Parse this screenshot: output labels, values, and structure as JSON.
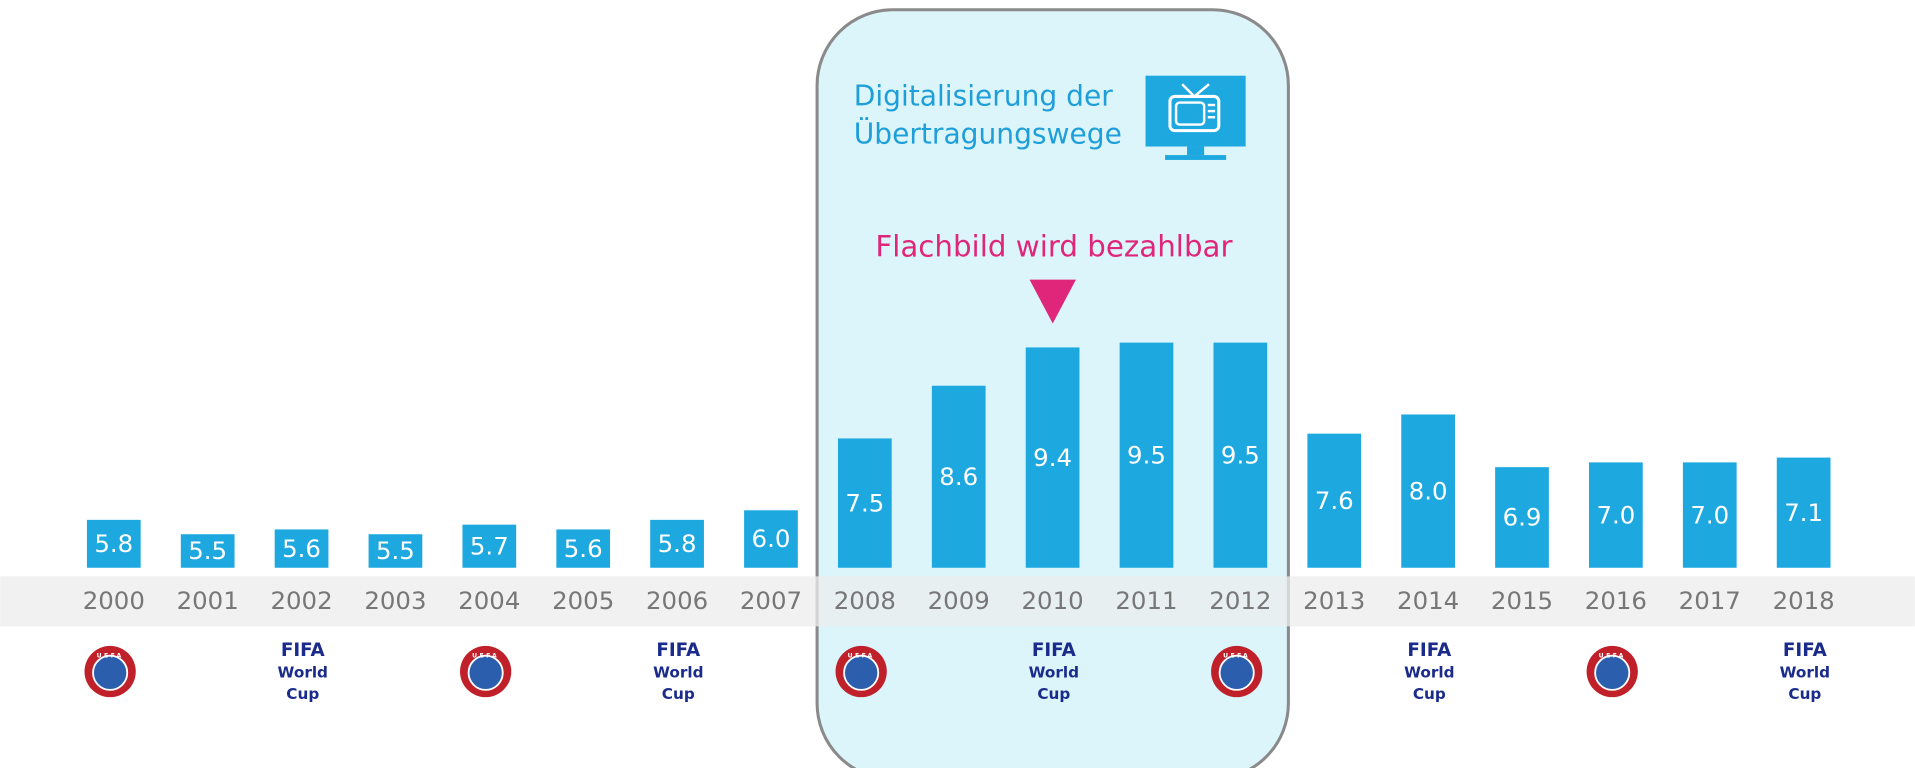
{
  "chart_data": {
    "type": "bar",
    "categories": [
      "2000",
      "2001",
      "2002",
      "2003",
      "2004",
      "2005",
      "2006",
      "2007",
      "2008",
      "2009",
      "2010",
      "2011",
      "2012",
      "2013",
      "2014",
      "2015",
      "2016",
      "2017",
      "2018"
    ],
    "values": [
      5.8,
      5.5,
      5.6,
      5.5,
      5.7,
      5.6,
      5.8,
      6.0,
      7.5,
      8.6,
      9.4,
      9.5,
      9.5,
      7.6,
      8.0,
      6.9,
      7.0,
      7.0,
      7.1
    ],
    "value_labels": [
      "5.8",
      "5.5",
      "5.6",
      "5.5",
      "5.7",
      "5.6",
      "5.8",
      "6.0",
      "7.5",
      "8.6",
      "9.4",
      "9.5",
      "9.5",
      "7.6",
      "8.0",
      "6.9",
      "7.0",
      "7.0",
      "7.1"
    ],
    "color": "#1ea8e0",
    "ylim": [
      4.8,
      12.6
    ],
    "highlight_title": [
      "Digitalisierung der",
      "Übertragungswege"
    ],
    "annotation": "Flachbild wird bezahlbar",
    "events": [
      [
        "UEFA"
      ],
      null,
      [
        "FIFA",
        "World",
        "Cup"
      ],
      null,
      [
        "UEFA"
      ],
      null,
      [
        "FIFA",
        "World",
        "Cup"
      ],
      null,
      [
        "UEFA"
      ],
      null,
      [
        "FIFA",
        "World",
        "Cup"
      ],
      null,
      [
        "UEFA"
      ],
      null,
      [
        "FIFA",
        "World",
        "Cup"
      ],
      null,
      [
        "UEFA"
      ],
      null,
      [
        "FIFA",
        "World",
        "Cup"
      ]
    ]
  }
}
